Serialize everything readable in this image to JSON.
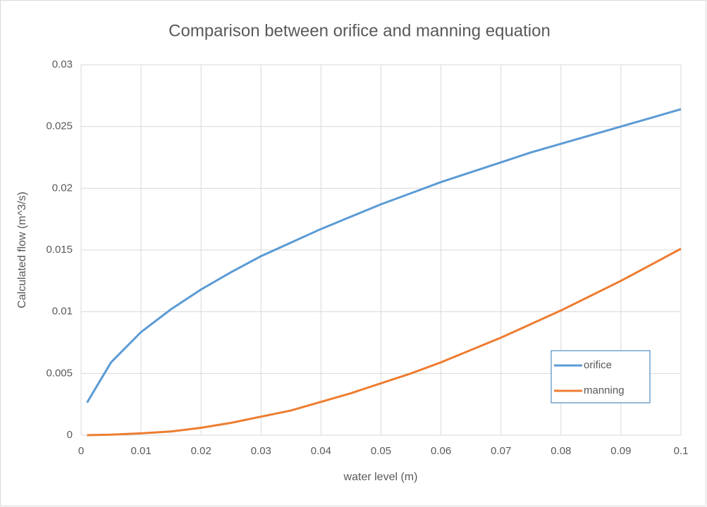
{
  "chart_data": {
    "type": "line",
    "title": "Comparison between orifice and manning equation",
    "x_label": "water level (m)",
    "y_label": "Calculated flow (m^3/s)",
    "x": [
      0.001,
      0.005,
      0.01,
      0.015,
      0.02,
      0.025,
      0.03,
      0.035,
      0.04,
      0.045,
      0.05,
      0.055,
      0.06,
      0.065,
      0.07,
      0.075,
      0.08,
      0.085,
      0.09,
      0.095,
      0.1
    ],
    "series": [
      {
        "name": "orifice",
        "color": "#5b9bd5",
        "values": [
          0.00264,
          0.0059,
          0.00835,
          0.0102,
          0.0118,
          0.0132,
          0.0145,
          0.0156,
          0.0167,
          0.0177,
          0.0187,
          0.0196,
          0.0205,
          0.0213,
          0.0221,
          0.0229,
          0.0236,
          0.0243,
          0.025,
          0.0257,
          0.0264
        ]
      },
      {
        "name": "manning",
        "color": "#ed7d31",
        "values": [
          0,
          4e-05,
          0.00015,
          0.0003,
          0.0006,
          0.001,
          0.0015,
          0.002,
          0.0027,
          0.0034,
          0.0042,
          0.005,
          0.0059,
          0.0069,
          0.0079,
          0.009,
          0.0101,
          0.0113,
          0.0125,
          0.0138,
          0.0151
        ]
      }
    ],
    "xlim": [
      0,
      0.1
    ],
    "xticks": [
      0,
      0.01,
      0.02,
      0.03,
      0.04,
      0.05,
      0.06,
      0.07,
      0.08,
      0.09,
      0.1
    ],
    "ylim": [
      0,
      0.03
    ],
    "yticks": [
      0,
      0.005,
      0.01,
      0.015,
      0.02,
      0.025,
      0.03
    ],
    "grid": true,
    "legend_position": "lower right"
  }
}
